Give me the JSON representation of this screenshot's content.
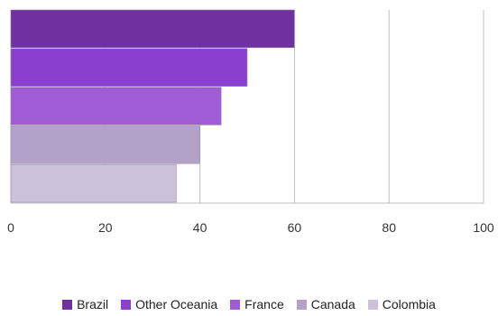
{
  "chart_data": {
    "type": "bar",
    "orientation": "horizontal",
    "categories": [
      "Brazil",
      "Other Oceania",
      "France",
      "Canada",
      "Colombia"
    ],
    "values": [
      60,
      50,
      44.5,
      40,
      35
    ],
    "colors": [
      "#7030a0",
      "#8b3fcf",
      "#a05cd6",
      "#b3a2c7",
      "#ccc1da"
    ],
    "xlim": [
      0,
      100
    ],
    "xticks": [
      0,
      20,
      40,
      60,
      80,
      100
    ],
    "grid": "vertical",
    "legend_position": "bottom",
    "title": "",
    "xlabel": "",
    "ylabel": ""
  }
}
